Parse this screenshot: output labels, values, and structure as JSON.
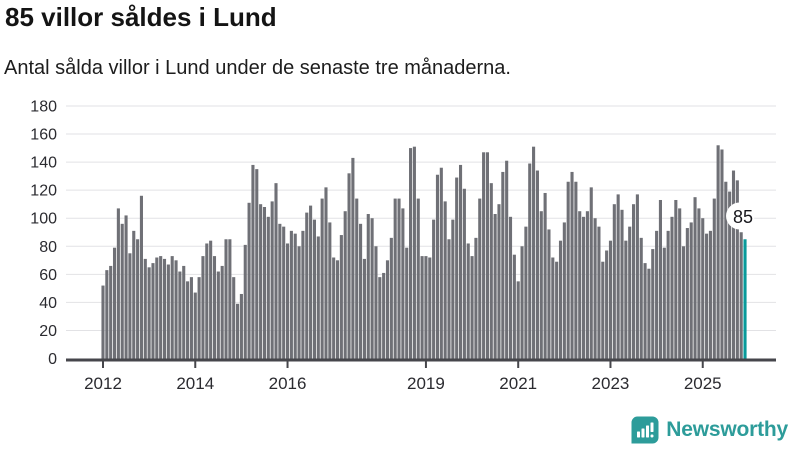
{
  "header": {
    "title": "85 villor såldes i Lund",
    "subtitle": "Antal sålda villor i Lund under de senaste tre månaderna."
  },
  "chart_data": {
    "type": "bar",
    "title": "85 villor såldes i Lund",
    "xlabel": "",
    "ylabel": "",
    "ylim": [
      0,
      180
    ],
    "yticks": [
      0,
      20,
      40,
      60,
      80,
      100,
      120,
      140,
      160,
      180
    ],
    "grid": true,
    "legend": "none",
    "x_tick_labels": [
      {
        "label": "2012",
        "index": 0
      },
      {
        "label": "2014",
        "index": 24
      },
      {
        "label": "2016",
        "index": 48
      },
      {
        "label": "2019",
        "index": 84
      },
      {
        "label": "2021",
        "index": 108
      },
      {
        "label": "2023",
        "index": 132
      },
      {
        "label": "2025",
        "index": 156
      }
    ],
    "values": [
      52,
      63,
      66,
      79,
      107,
      96,
      102,
      75,
      91,
      85,
      116,
      71,
      65,
      68,
      72,
      73,
      71,
      67,
      73,
      70,
      62,
      66,
      55,
      58,
      47,
      58,
      73,
      82,
      84,
      73,
      62,
      66,
      85,
      85,
      58,
      39,
      46,
      81,
      111,
      138,
      135,
      110,
      108,
      101,
      112,
      125,
      96,
      94,
      82,
      91,
      89,
      80,
      91,
      104,
      109,
      99,
      87,
      114,
      122,
      97,
      72,
      70,
      88,
      105,
      132,
      143,
      114,
      96,
      71,
      103,
      100,
      80,
      58,
      61,
      70,
      86,
      114,
      114,
      107,
      79,
      150,
      151,
      114,
      73,
      73,
      72,
      99,
      131,
      136,
      112,
      85,
      99,
      129,
      138,
      121,
      82,
      73,
      86,
      114,
      147,
      147,
      125,
      103,
      110,
      133,
      141,
      101,
      74,
      55,
      80,
      94,
      139,
      151,
      134,
      105,
      118,
      92,
      72,
      69,
      84,
      97,
      126,
      133,
      126,
      105,
      101,
      105,
      122,
      100,
      94,
      69,
      77,
      84,
      110,
      117,
      106,
      84,
      94,
      110,
      117,
      86,
      68,
      64,
      78,
      91,
      113,
      79,
      91,
      101,
      113,
      107,
      80,
      93,
      97,
      115,
      107,
      100,
      89,
      91,
      114,
      152,
      149,
      126,
      119,
      134,
      127,
      90,
      85
    ],
    "highlight": {
      "index": 167,
      "value": 85,
      "label": "85",
      "color": "#089a9a"
    },
    "bar_color": "#6f7076"
  },
  "annotation": {
    "label": "85"
  },
  "branding": {
    "name": "Newsworthy"
  },
  "colors": {
    "accent_teal": "#089a9a",
    "bar_gray": "#6f7076",
    "axis": "#46464b",
    "grid": "#e2e2e5",
    "tick_text": "#2b2b30",
    "logo_teal": "#2d9c9a",
    "annotation_text": "#17171c"
  }
}
